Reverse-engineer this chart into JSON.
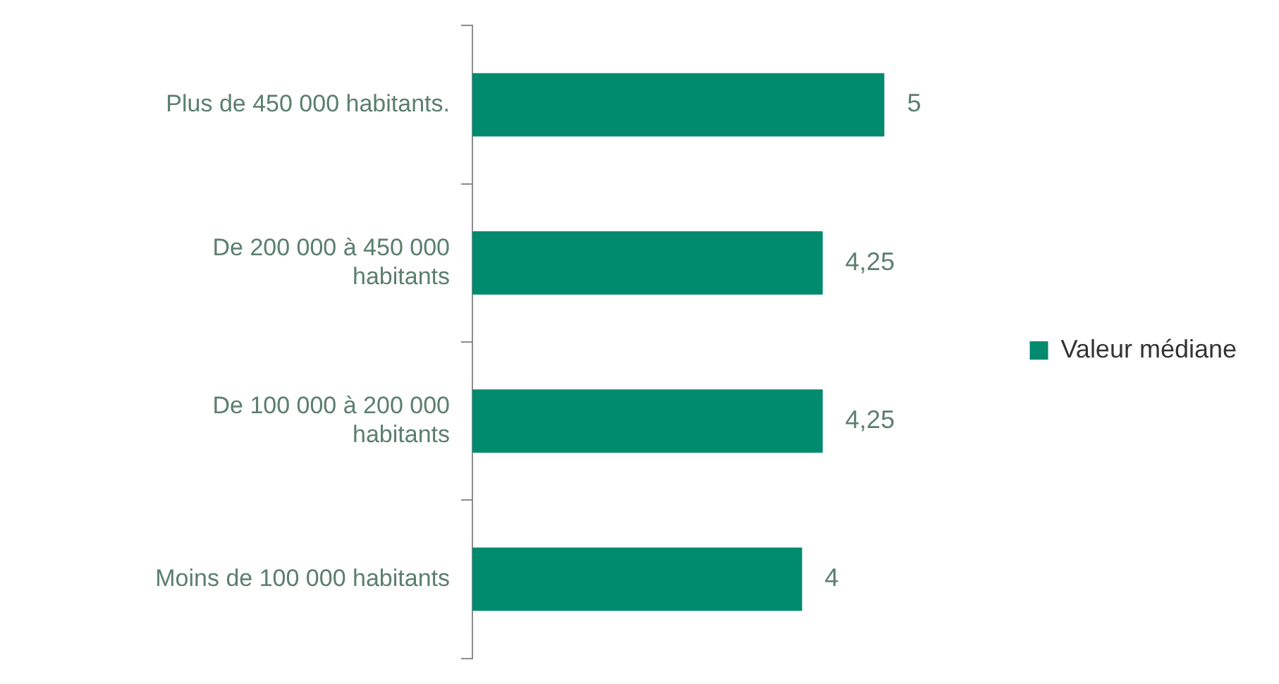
{
  "chart_data": {
    "type": "bar",
    "orientation": "horizontal",
    "categories": [
      "Plus de 450 000 habitants.",
      "De 200 000 à 450 000 habitants",
      "De 100 000 à 200 000 habitants",
      "Moins de 100 000 habitants"
    ],
    "series": [
      {
        "name": "Valeur médiane",
        "color": "#008a6e",
        "values": [
          5,
          4.25,
          4.25,
          4
        ],
        "value_labels": [
          "5",
          "4,25",
          "4,25",
          "4"
        ]
      }
    ],
    "legend": "right",
    "grid": false
  }
}
